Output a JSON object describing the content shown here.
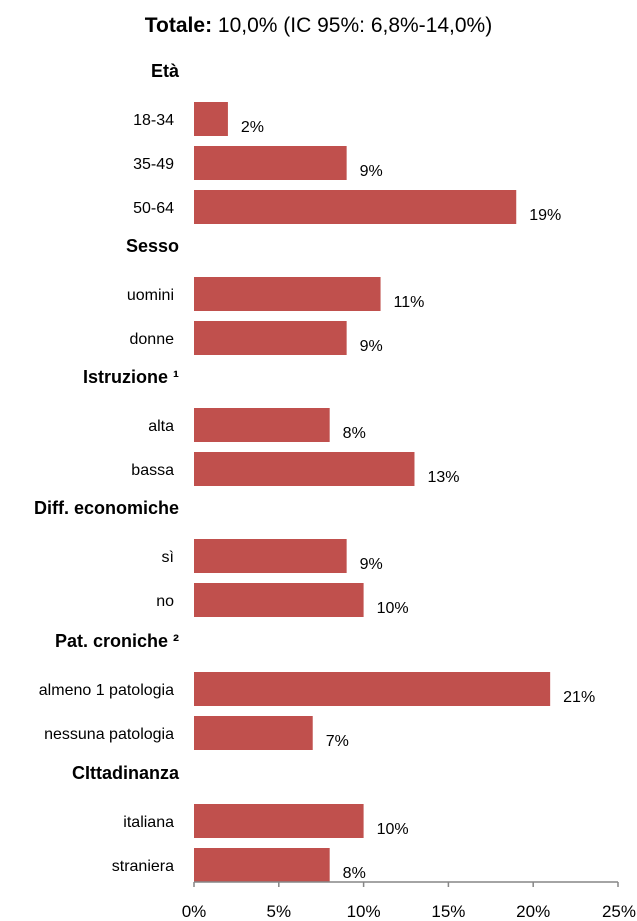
{
  "chart_data": {
    "type": "bar",
    "orientation": "horizontal",
    "title": {
      "bold": "Totale:",
      "rest": "10,0% (IC 95%: 6,8%-14,0%)"
    },
    "groups": [
      {
        "name": "Età",
        "items": [
          {
            "label": "18-34",
            "value": 2,
            "value_label": "2%"
          },
          {
            "label": "35-49",
            "value": 9,
            "value_label": "9%"
          },
          {
            "label": "50-64",
            "value": 19,
            "value_label": "19%"
          }
        ]
      },
      {
        "name": "Sesso",
        "items": [
          {
            "label": "uomini",
            "value": 11,
            "value_label": "11%"
          },
          {
            "label": "donne",
            "value": 9,
            "value_label": "9%"
          }
        ]
      },
      {
        "name": "Istruzione ¹",
        "items": [
          {
            "label": "alta",
            "value": 8,
            "value_label": "8%"
          },
          {
            "label": "bassa",
            "value": 13,
            "value_label": "13%"
          }
        ]
      },
      {
        "name": "Diff. economiche",
        "items": [
          {
            "label": "sì",
            "value": 9,
            "value_label": "9%"
          },
          {
            "label": "no",
            "value": 10,
            "value_label": "10%"
          }
        ]
      },
      {
        "name": "Pat. croniche ²",
        "items": [
          {
            "label": "almeno 1 patologia",
            "value": 21,
            "value_label": "21%"
          },
          {
            "label": "nessuna patologia",
            "value": 7,
            "value_label": "7%"
          }
        ]
      },
      {
        "name": "CIttadinanza",
        "items": [
          {
            "label": "italiana",
            "value": 10,
            "value_label": "10%"
          },
          {
            "label": "straniera",
            "value": 8,
            "value_label": "8%"
          }
        ]
      }
    ],
    "xlim": [
      0,
      25
    ],
    "xticks": [
      {
        "value": 0,
        "label": "0%"
      },
      {
        "value": 5,
        "label": "5%"
      },
      {
        "value": 10,
        "label": "10%"
      },
      {
        "value": 15,
        "label": "15%"
      },
      {
        "value": 20,
        "label": "20%"
      },
      {
        "value": 25,
        "label": "25%"
      }
    ],
    "grid": false,
    "legend": "none",
    "colors": {
      "bar": "#c0504d",
      "axis": "#868686",
      "text": "#000000"
    }
  }
}
